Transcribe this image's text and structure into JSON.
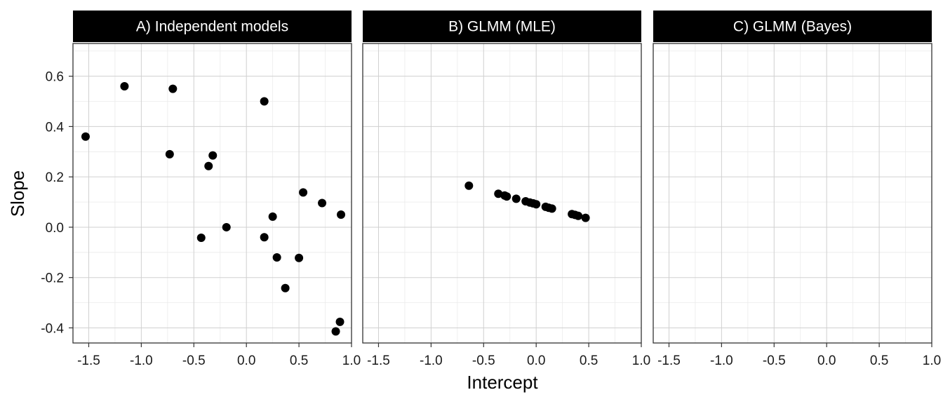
{
  "chart_data": {
    "type": "scatter",
    "xlabel": "Intercept",
    "ylabel": "Slope",
    "xlim": [
      -1.65,
      1.0
    ],
    "ylim": [
      -0.46,
      0.73
    ],
    "x_ticks": [
      -1.5,
      -1.0,
      -0.5,
      0.0,
      0.5,
      1.0
    ],
    "x_tick_labels": [
      "-1.5",
      "-1.0",
      "-0.5",
      "0.0",
      "0.5",
      "1.0"
    ],
    "y_ticks": [
      -0.4,
      -0.2,
      0.0,
      0.2,
      0.4,
      0.6
    ],
    "y_tick_labels": [
      "-0.4",
      "-0.2",
      "0.0",
      "0.2",
      "0.4",
      "0.6"
    ],
    "grid": true,
    "point_color": "#000000",
    "strip_color": "#000000",
    "panels": [
      {
        "title": "A) Independent models",
        "points": [
          {
            "x": -1.53,
            "y": 0.36
          },
          {
            "x": -1.16,
            "y": 0.56
          },
          {
            "x": -0.7,
            "y": 0.55
          },
          {
            "x": -0.73,
            "y": 0.29
          },
          {
            "x": -0.32,
            "y": 0.285
          },
          {
            "x": -0.36,
            "y": 0.243
          },
          {
            "x": 0.17,
            "y": 0.5
          },
          {
            "x": 0.54,
            "y": 0.138
          },
          {
            "x": 0.72,
            "y": 0.096
          },
          {
            "x": 0.9,
            "y": 0.05
          },
          {
            "x": 0.25,
            "y": 0.042
          },
          {
            "x": -0.19,
            "y": 0.0
          },
          {
            "x": -0.43,
            "y": -0.042
          },
          {
            "x": 0.17,
            "y": -0.04
          },
          {
            "x": 0.29,
            "y": -0.12
          },
          {
            "x": 0.5,
            "y": -0.122
          },
          {
            "x": 0.37,
            "y": -0.242
          },
          {
            "x": 0.89,
            "y": -0.376
          },
          {
            "x": 0.85,
            "y": -0.414
          }
        ]
      },
      {
        "title": "B) GLMM (MLE)",
        "points": [
          {
            "x": -0.64,
            "y": 0.165
          },
          {
            "x": -0.36,
            "y": 0.133
          },
          {
            "x": -0.3,
            "y": 0.126
          },
          {
            "x": -0.28,
            "y": 0.122
          },
          {
            "x": -0.19,
            "y": 0.113
          },
          {
            "x": -0.1,
            "y": 0.103
          },
          {
            "x": -0.06,
            "y": 0.098
          },
          {
            "x": -0.03,
            "y": 0.095
          },
          {
            "x": 0.0,
            "y": 0.091
          },
          {
            "x": 0.09,
            "y": 0.081
          },
          {
            "x": 0.12,
            "y": 0.077
          },
          {
            "x": 0.15,
            "y": 0.074
          },
          {
            "x": 0.34,
            "y": 0.052
          },
          {
            "x": 0.37,
            "y": 0.049
          },
          {
            "x": 0.4,
            "y": 0.045
          },
          {
            "x": 0.47,
            "y": 0.037
          }
        ]
      },
      {
        "title": "C) GLMM (Bayes)",
        "points": []
      }
    ]
  }
}
